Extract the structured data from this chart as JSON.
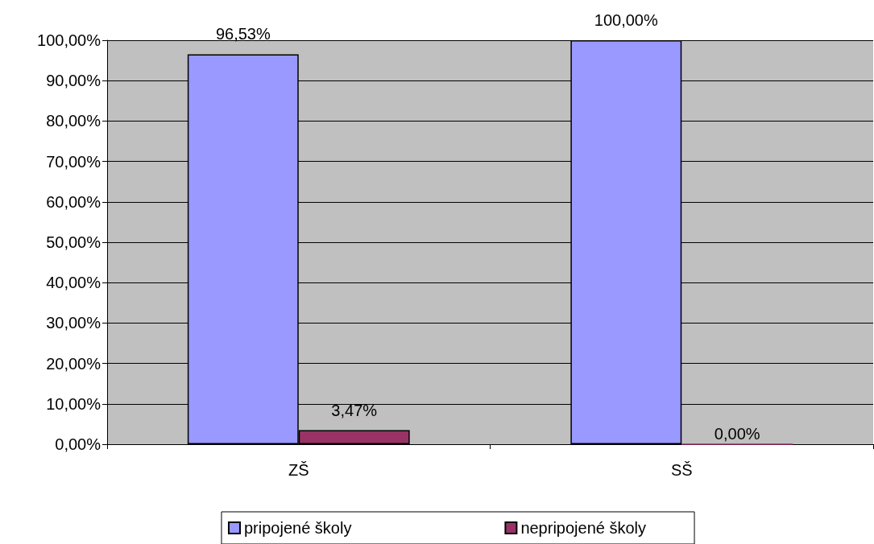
{
  "chart_data": {
    "type": "bar",
    "categories": [
      "ZŠ",
      "SŠ"
    ],
    "series": [
      {
        "name": "pripojené školy",
        "color": "#9999ff",
        "values": [
          96.53,
          100
        ],
        "value_labels": [
          "96,53%",
          "100,00%"
        ]
      },
      {
        "name": "nepripojené školy",
        "color": "#993366",
        "values": [
          3.47,
          0
        ],
        "value_labels": [
          "3,47%",
          "0,00%"
        ]
      }
    ],
    "ylim": [
      0,
      100
    ],
    "yticks": [
      {
        "value": 0,
        "label": "0,00%"
      },
      {
        "value": 10,
        "label": "10,00%"
      },
      {
        "value": 20,
        "label": "20,00%"
      },
      {
        "value": 30,
        "label": "30,00%"
      },
      {
        "value": 40,
        "label": "40,00%"
      },
      {
        "value": 50,
        "label": "50,00%"
      },
      {
        "value": 60,
        "label": "60,00%"
      },
      {
        "value": 70,
        "label": "70,00%"
      },
      {
        "value": 80,
        "label": "80,00%"
      },
      {
        "value": 90,
        "label": "90,00%"
      },
      {
        "value": 100,
        "label": "100,00%"
      }
    ],
    "grid": "y",
    "legend": "bottom"
  }
}
